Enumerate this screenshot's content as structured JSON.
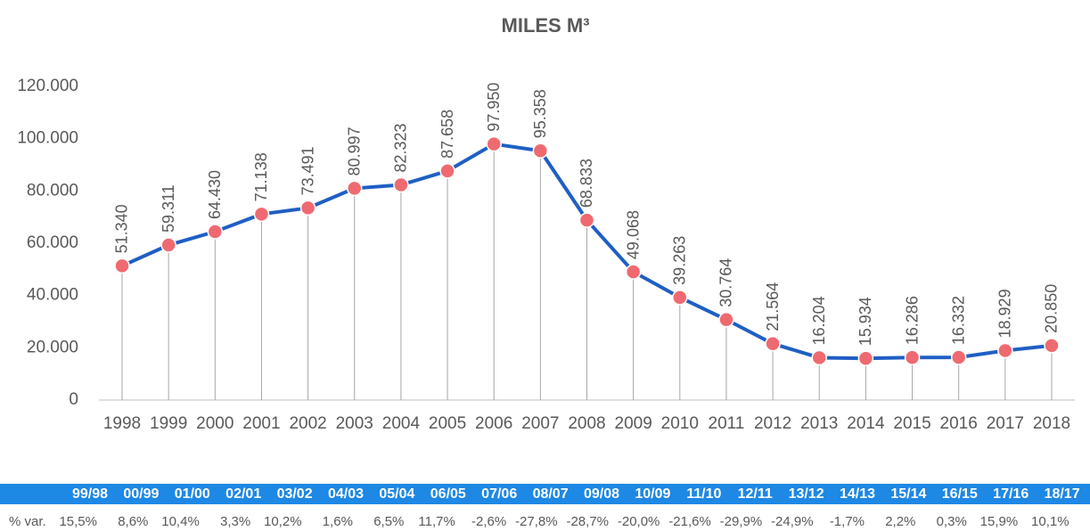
{
  "chart_data": {
    "type": "line",
    "title": "MILES M³",
    "categories": [
      "1998",
      "1999",
      "2000",
      "2001",
      "2002",
      "2003",
      "2004",
      "2005",
      "2006",
      "2007",
      "2008",
      "2009",
      "2010",
      "2011",
      "2012",
      "2013",
      "2014",
      "2015",
      "2016",
      "2017",
      "2018"
    ],
    "series": [
      {
        "name": null,
        "color": "#1f5fc4",
        "marker_color": "#ef6a70",
        "values": [
          51340,
          59311,
          64430,
          71138,
          73491,
          80997,
          82323,
          87658,
          97950,
          95358,
          68833,
          49068,
          39263,
          30764,
          21564,
          16204,
          15934,
          16286,
          16332,
          18929,
          20850
        ],
        "value_labels": [
          "51.340",
          "59.311",
          "64.430",
          "71.138",
          "73.491",
          "80.997",
          "82.323",
          "87.658",
          "97.950",
          "95.358",
          "68.833",
          "49.068",
          "39.263",
          "30.764",
          "21.564",
          "16.204",
          "15.934",
          "16.286",
          "16.332",
          "18.929",
          "20.850"
        ]
      }
    ],
    "ylim": [
      0,
      120000
    ],
    "yticks": [
      0,
      {
        "value": 20000,
        "label": "20.000"
      },
      {
        "value": 40000,
        "label": "40.000"
      },
      {
        "value": 60000,
        "label": "60.000"
      },
      {
        "value": 80000,
        "label": "80.000"
      },
      {
        "value": 100000,
        "label": "100.000"
      },
      {
        "value": 120000,
        "label": "120.000"
      }
    ],
    "grid": false
  },
  "table": {
    "headers": [
      "99/98",
      "00/99",
      "01/00",
      "02/01",
      "03/02",
      "04/03",
      "05/04",
      "06/05",
      "07/06",
      "08/07",
      "09/08",
      "10/09",
      "11/10",
      "12/11",
      "13/12",
      "14/13",
      "15/14",
      "16/15",
      "17/16",
      "18/17"
    ],
    "row_label": "% var.",
    "row": [
      "15,5%",
      "8,6%",
      "10,4%",
      "3,3%",
      "10,2%",
      "1,6%",
      "6,5%",
      "11,7%",
      "-2,6%",
      "-27,8%",
      "-28,7%",
      "-20,0%",
      "-21,6%",
      "-29,9%",
      "-24,9%",
      "-1,7%",
      "2,2%",
      "0,3%",
      "15,9%",
      "10,1%"
    ]
  }
}
